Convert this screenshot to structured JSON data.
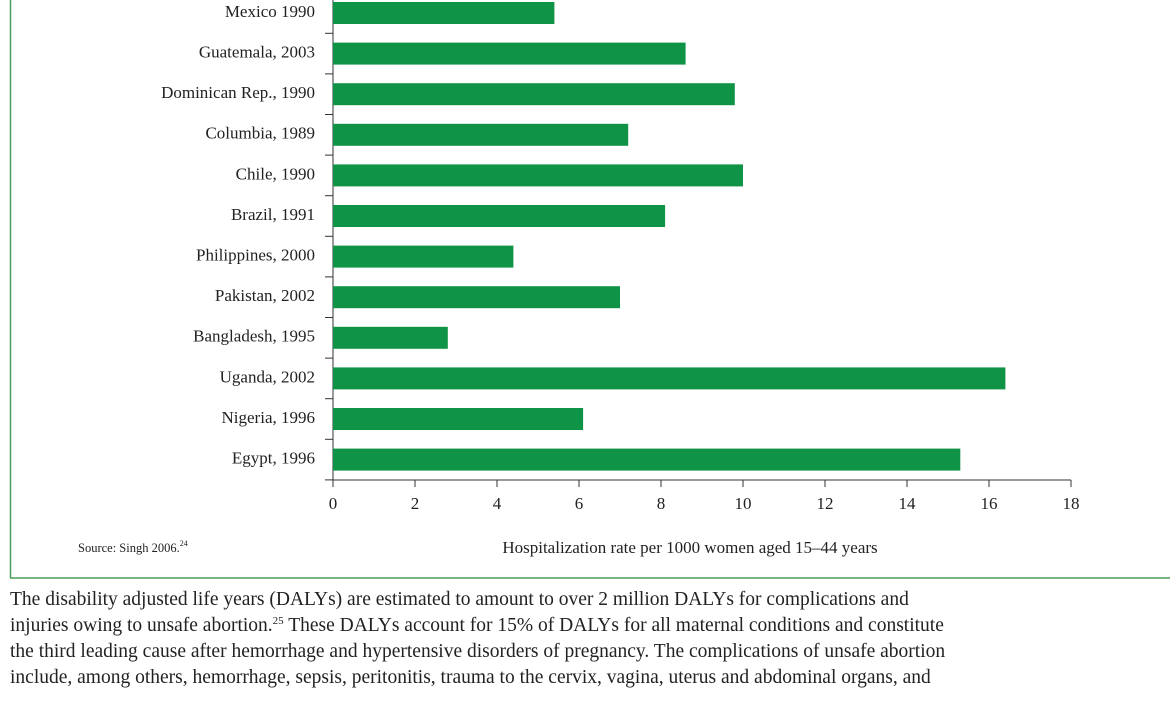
{
  "chart_data": {
    "type": "hbar",
    "categories": [
      "Mexico 1990",
      "Guatemala, 2003",
      "Dominican Rep., 1990",
      "Columbia, 1989",
      "Chile, 1990",
      "Brazil, 1991",
      "Philippines, 2000",
      "Pakistan, 2002",
      "Bangladesh, 1995",
      "Uganda, 2002",
      "Nigeria, 1996",
      "Egypt, 1996"
    ],
    "values": [
      5.4,
      8.6,
      9.8,
      7.2,
      10,
      8.1,
      4.4,
      7.0,
      2.8,
      16.4,
      6.1,
      15.3
    ],
    "color": "#0f9447",
    "xlim": [
      0,
      18
    ],
    "xticks": [
      0,
      2,
      4,
      6,
      8,
      10,
      12,
      14,
      16,
      18
    ],
    "xlabel": "Hospitalization rate per 1000 women aged 15–44 years"
  },
  "source": {
    "text": "Source: Singh 2006.",
    "note": "24"
  },
  "paragraph": [
    [
      "The disability adjusted life years (DALYs) are estimated to amount to over 2 million DALYs for complications and"
    ],
    [
      "injuries owing to unsafe abortion.",
      "25",
      " These DALYs account for 15% of DALYs for all maternal conditions and constitute"
    ],
    [
      "the third leading cause after hemorrhage and hypertensive disorders of pregnancy. The complications of unsafe abortion"
    ],
    [
      "include, among others, hemorrhage, sepsis, peritonitis, trauma to the cervix, vagina, uterus and abdominal organs, and"
    ]
  ]
}
